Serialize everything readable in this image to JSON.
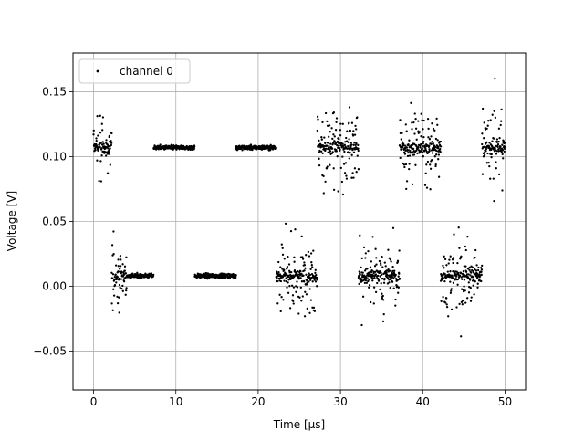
{
  "chart_data": {
    "type": "scatter",
    "title": "",
    "xlabel": "Time [μs]",
    "ylabel": "Voltage [V]",
    "xlim": [
      -2.5,
      52.5
    ],
    "ylim": [
      -0.08,
      0.18
    ],
    "xticks": [
      0,
      10,
      20,
      30,
      40,
      50
    ],
    "xtick_labels": [
      "0",
      "10",
      "20",
      "30",
      "40",
      "50"
    ],
    "yticks": [
      -0.05,
      0.0,
      0.05,
      0.1,
      0.15
    ],
    "ytick_labels": [
      "−0.05",
      "0.00",
      "0.05",
      "0.10",
      "0.15"
    ],
    "grid": true,
    "legend": {
      "position": "top-left",
      "entries": [
        "channel 0"
      ]
    },
    "marker_color": "#000000",
    "series": [
      {
        "name": "channel 0",
        "segments": [
          {
            "x_start": 0.0,
            "x_end": 2.2,
            "level": 0.107,
            "state": "noisy"
          },
          {
            "x_start": 2.2,
            "x_end": 4.0,
            "level": 0.008,
            "state": "noisy"
          },
          {
            "x_start": 4.0,
            "x_end": 7.3,
            "level": 0.008,
            "state": "quiet"
          },
          {
            "x_start": 7.3,
            "x_end": 12.3,
            "level": 0.107,
            "state": "quiet"
          },
          {
            "x_start": 12.3,
            "x_end": 17.3,
            "level": 0.008,
            "state": "quiet"
          },
          {
            "x_start": 17.3,
            "x_end": 22.2,
            "level": 0.107,
            "state": "quiet"
          },
          {
            "x_start": 22.2,
            "x_end": 27.2,
            "level": 0.008,
            "state": "noisy"
          },
          {
            "x_start": 27.2,
            "x_end": 32.2,
            "level": 0.107,
            "state": "noisy"
          },
          {
            "x_start": 32.2,
            "x_end": 37.2,
            "level": 0.008,
            "state": "noisy"
          },
          {
            "x_start": 37.2,
            "x_end": 42.2,
            "level": 0.107,
            "state": "noisy"
          },
          {
            "x_start": 42.2,
            "x_end": 47.2,
            "level": 0.008,
            "state": "noisy"
          },
          {
            "x_start": 47.2,
            "x_end": 50.0,
            "level": 0.107,
            "state": "noisy"
          }
        ]
      }
    ]
  }
}
